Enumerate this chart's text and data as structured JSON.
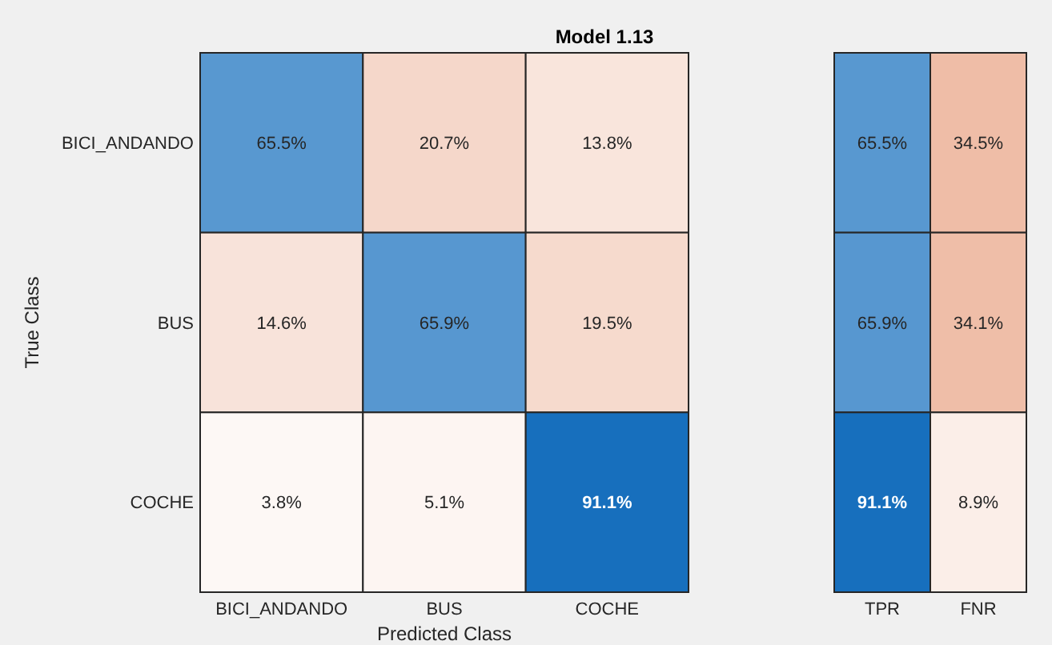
{
  "chart_data": [
    {
      "type": "heatmap",
      "title": "Model 1.13",
      "xlabel": "Predicted Class",
      "ylabel": "True Class",
      "categories": [
        "BICI_ANDANDO",
        "BUS",
        "COCHE"
      ],
      "y_categories": [
        "BICI_ANDANDO",
        "BUS",
        "COCHE"
      ],
      "cells": [
        [
          65.5,
          20.7,
          13.8
        ],
        [
          14.6,
          65.9,
          19.5
        ],
        [
          3.8,
          5.1,
          91.1
        ]
      ],
      "cell_labels": [
        [
          "65.5%",
          "20.7%",
          "13.8%"
        ],
        [
          "14.6%",
          "65.9%",
          "19.5%"
        ],
        [
          "3.8%",
          "5.1%",
          "91.1%"
        ]
      ]
    },
    {
      "type": "heatmap",
      "categories": [
        "TPR",
        "FNR"
      ],
      "y_categories": [
        null,
        null,
        null
      ],
      "cells": [
        [
          65.5,
          34.5
        ],
        [
          65.9,
          34.1
        ],
        [
          91.1,
          8.9
        ]
      ],
      "cell_labels": [
        [
          "65.5%",
          "34.5%"
        ],
        [
          "65.9%",
          "34.1%"
        ],
        [
          "91.1%",
          "8.9%"
        ]
      ]
    }
  ]
}
